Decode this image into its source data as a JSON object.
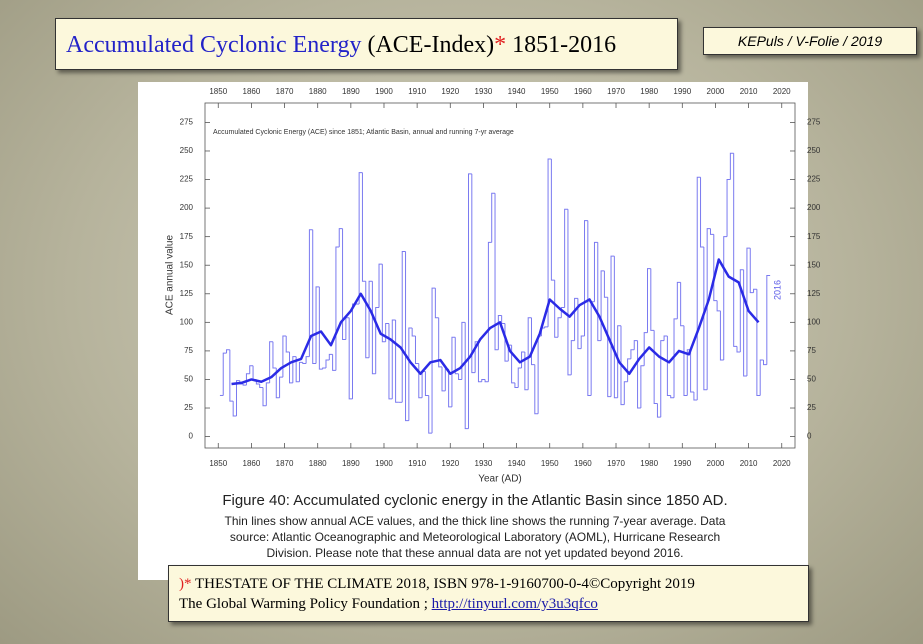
{
  "slide": {
    "title_parts": [
      "Accumulated Cyclonic Energy",
      "(ACE-Index)",
      "*",
      "1851-2016"
    ],
    "tag": "KEPuls / V-Folie / 2019",
    "caption_title": "Figure 40: Accumulated cyclonic energy in the Atlantic Basin since 1850 AD.",
    "caption_lines": [
      "Thin lines show annual ACE values, and the thick line shows the running 7-year average. Data",
      "source: Atlantic Oceanographic and Meteorological Laboratory (AOML), Hurricane Research",
      "Division. Please note that these annual data are not yet updated beyond 2016."
    ],
    "footer": {
      "mark": ")*",
      "line1": "THESTATE OF THE CLIMATE 2018, ISBN 978-1-9160700-0-4©Copyright 2019",
      "line2": "The Global Warming Policy Foundation ;",
      "link": "http://tinyurl.com/y3u3qfco"
    }
  },
  "chart_data": {
    "type": "line",
    "title": "Accumulated Cyclonic Energy (ACE) since 1851; Atlantic Basin, annual and running 7-yr average",
    "x_label": "Year (AD)",
    "y_label": "ACE annual value",
    "annotation": "2016",
    "xlim": [
      1846,
      2024
    ],
    "xticks": [
      1850,
      1860,
      1870,
      1880,
      1890,
      1900,
      1910,
      1920,
      1930,
      1940,
      1950,
      1960,
      1970,
      1980,
      1990,
      2000,
      2010,
      2020
    ],
    "ylim": [
      -10,
      292
    ],
    "yticks": [
      0,
      25,
      50,
      75,
      100,
      125,
      150,
      175,
      200,
      225,
      250,
      275
    ],
    "series": [
      {
        "style": "step",
        "color": "#7a7af0",
        "width": 1,
        "x": [
          1851,
          1852,
          1853,
          1854,
          1855,
          1856,
          1857,
          1858,
          1859,
          1860,
          1861,
          1862,
          1863,
          1864,
          1865,
          1866,
          1867,
          1868,
          1869,
          1870,
          1871,
          1872,
          1873,
          1874,
          1875,
          1876,
          1877,
          1878,
          1879,
          1880,
          1881,
          1882,
          1883,
          1884,
          1885,
          1886,
          1887,
          1888,
          1889,
          1890,
          1891,
          1892,
          1893,
          1894,
          1895,
          1896,
          1897,
          1898,
          1899,
          1900,
          1901,
          1902,
          1903,
          1904,
          1905,
          1906,
          1907,
          1908,
          1909,
          1910,
          1911,
          1912,
          1913,
          1914,
          1915,
          1916,
          1917,
          1918,
          1919,
          1920,
          1921,
          1922,
          1923,
          1924,
          1925,
          1926,
          1927,
          1928,
          1929,
          1930,
          1931,
          1932,
          1933,
          1934,
          1935,
          1936,
          1937,
          1938,
          1939,
          1940,
          1941,
          1942,
          1943,
          1944,
          1945,
          1946,
          1947,
          1948,
          1949,
          1950,
          1951,
          1952,
          1953,
          1954,
          1955,
          1956,
          1957,
          1958,
          1959,
          1960,
          1961,
          1962,
          1963,
          1964,
          1965,
          1966,
          1967,
          1968,
          1969,
          1970,
          1971,
          1972,
          1973,
          1974,
          1975,
          1976,
          1977,
          1978,
          1979,
          1980,
          1981,
          1982,
          1983,
          1984,
          1985,
          1986,
          1987,
          1988,
          1989,
          1990,
          1991,
          1992,
          1993,
          1994,
          1995,
          1996,
          1997,
          1998,
          1999,
          2000,
          2001,
          2002,
          2003,
          2004,
          2005,
          2006,
          2007,
          2008,
          2009,
          2010,
          2011,
          2012,
          2013,
          2014,
          2015,
          2016
        ],
        "values": [
          36,
          73,
          76,
          31,
          18,
          49,
          46,
          45,
          55,
          62,
          50,
          46,
          43,
          27,
          47,
          83,
          60,
          34,
          52,
          88,
          74,
          47,
          70,
          48,
          65,
          64,
          70,
          181,
          64,
          131,
          59,
          60,
          67,
          72,
          58,
          166,
          182,
          85,
          104,
          33,
          116,
          116,
          231,
          136,
          69,
          136,
          55,
          113,
          151,
          83,
          99,
          33,
          102,
          30,
          30,
          162,
          14,
          95,
          88,
          64,
          34,
          57,
          36,
          3,
          130,
          104,
          61,
          40,
          59,
          26,
          87,
          55,
          50,
          100,
          7,
          230,
          56,
          83,
          48,
          50,
          48,
          170,
          213,
          76,
          106,
          99,
          66,
          80,
          47,
          43,
          60,
          74,
          41,
          104,
          63,
          20,
          88,
          95,
          96,
          243,
          137,
          87,
          104,
          113,
          199,
          54,
          84,
          121,
          77,
          88,
          189,
          36,
          118,
          170,
          84,
          145,
          122,
          35,
          158,
          34,
          97,
          28,
          48,
          68,
          76,
          84,
          25,
          62,
          91,
          147,
          93,
          29,
          17,
          84,
          88,
          36,
          34,
          103,
          135,
          97,
          36,
          76,
          39,
          32,
          227,
          166,
          41,
          182,
          177,
          119,
          110,
          67,
          175,
          225,
          248,
          79,
          74,
          146,
          53,
          165,
          126,
          129,
          36,
          67,
          63,
          141
        ]
      },
      {
        "style": "smooth",
        "color": "#2b2be6",
        "width": 2.5,
        "x": [
          1854,
          1857,
          1860,
          1863,
          1866,
          1869,
          1872,
          1875,
          1878,
          1881,
          1884,
          1887,
          1890,
          1893,
          1896,
          1899,
          1902,
          1905,
          1908,
          1911,
          1914,
          1917,
          1920,
          1923,
          1926,
          1929,
          1932,
          1935,
          1938,
          1941,
          1944,
          1947,
          1950,
          1953,
          1956,
          1959,
          1962,
          1965,
          1968,
          1971,
          1974,
          1977,
          1980,
          1983,
          1986,
          1989,
          1992,
          1995,
          1998,
          2001,
          2004,
          2007,
          2010,
          2013
        ],
        "values": [
          46,
          47,
          50,
          48,
          52,
          60,
          65,
          68,
          88,
          92,
          80,
          100,
          110,
          125,
          110,
          90,
          85,
          78,
          65,
          55,
          65,
          67,
          55,
          60,
          70,
          85,
          95,
          100,
          75,
          65,
          70,
          90,
          120,
          112,
          105,
          115,
          120,
          105,
          85,
          65,
          55,
          68,
          78,
          70,
          65,
          75,
          72,
          95,
          120,
          155,
          140,
          135,
          110,
          100
        ]
      }
    ]
  }
}
